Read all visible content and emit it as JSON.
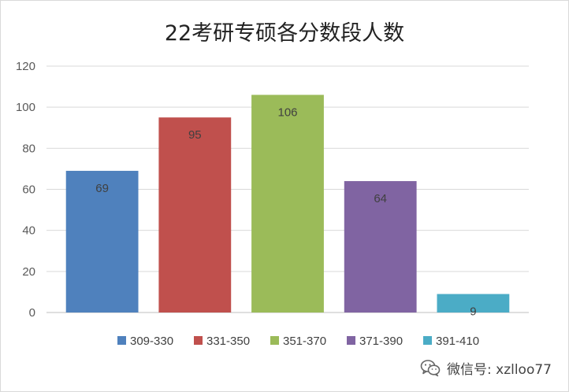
{
  "chart_data": {
    "type": "bar",
    "title": "22考研专硕各分数段人数",
    "xlabel": "",
    "ylabel": "",
    "ylim": [
      0,
      120
    ],
    "yticks": [
      0,
      20,
      40,
      60,
      80,
      100,
      120
    ],
    "grid": true,
    "legend_position": "bottom",
    "categories": [
      "309-330",
      "331-350",
      "351-370",
      "371-390",
      "391-410"
    ],
    "values": [
      69,
      95,
      106,
      64,
      9
    ],
    "colors": [
      "#4f81bd",
      "#c0504d",
      "#9bbb59",
      "#8064a2",
      "#4bacc6"
    ]
  },
  "watermark": {
    "icon": "wechat-icon",
    "text": "微信号: xzlloo77"
  }
}
